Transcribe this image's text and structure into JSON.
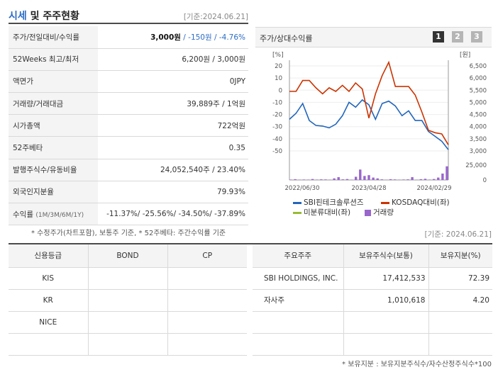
{
  "header": {
    "title_a": "시세",
    "title_b": " 및 주주현황",
    "date": "[기준:2024.06.21]"
  },
  "price_table": {
    "rows": [
      {
        "label": "주가/전일대비/수익률",
        "value_strong": "3,000원",
        "value_rest": " / -150원 / -4.76%"
      },
      {
        "label": "52Weeks 최고/최저",
        "value": "6,200원 / 3,000원"
      },
      {
        "label": "액면가",
        "value": "0JPY"
      },
      {
        "label": "거래량/거래대금",
        "value": "39,889주 / 1억원"
      },
      {
        "label": "시가총액",
        "value": "722억원"
      },
      {
        "label": "52주베타",
        "value": "0.35"
      },
      {
        "label": "발행주식수/유동비율",
        "value": "24,052,540주 / 23.40%"
      },
      {
        "label": "외국인지분율",
        "value": "79.93%"
      },
      {
        "label": "수익률",
        "label_small": "(1M/3M/6M/1Y)",
        "value": "-11.37%/ -25.56%/ -34.50%/ -37.89%"
      }
    ],
    "note": "* 수정주가(차트포함), 보통주 기준, * 52주베타: 주간수익률 기준"
  },
  "chart_panel": {
    "title": "주가/상대수익률",
    "buttons": [
      "1",
      "2",
      "3"
    ],
    "active_button": "1"
  },
  "chart_data": {
    "type": "line",
    "left_unit": "[%]",
    "right_unit": "[원]",
    "left_ticks": [
      20,
      10,
      0,
      -10,
      -20,
      -30,
      -40,
      -50
    ],
    "right_ticks": [
      "6,500",
      "6,000",
      "5,500",
      "5,000",
      "4,500",
      "4,000",
      "3,500",
      "3,000"
    ],
    "volume_ticks": [
      "25,000",
      "0"
    ],
    "x_labels": [
      "2022/06/30",
      "2023/04/28",
      "2024/02/29"
    ],
    "ylim_left": [
      -50,
      20
    ],
    "ylim_right": [
      3000,
      6500
    ],
    "series": [
      {
        "name": "SBI핀테크솔루션즈",
        "axis": "left",
        "color": "#2266bb",
        "values": [
          -24,
          -19,
          -11,
          -25,
          -29,
          -29.5,
          -31,
          -28,
          -21,
          -10,
          -14,
          -8,
          -12,
          -24,
          -11,
          -9,
          -13,
          -21,
          -17,
          -25,
          -25,
          -34,
          -38,
          -42,
          -49
        ]
      },
      {
        "name": "KOSDAQ대비(좌)",
        "axis": "left",
        "color": "#cc3300",
        "values": [
          -1,
          -1,
          8,
          8,
          2,
          -3,
          2,
          -1,
          4,
          -1,
          6,
          1,
          -23,
          -3,
          12,
          23,
          3,
          3,
          3,
          -4,
          -18,
          -33,
          -35,
          -36,
          -45
        ]
      },
      {
        "name": "미분류대비(좌)",
        "axis": "left",
        "color": "#99bb33",
        "values": []
      },
      {
        "name": "거래량",
        "axis": "volume",
        "color": "#9966cc",
        "type": "bar",
        "values": [
          500,
          1000,
          400,
          600,
          500,
          1200,
          500,
          800,
          700,
          400,
          2000,
          3500,
          800,
          1200,
          400,
          4000,
          13000,
          5000,
          6000,
          3000,
          2000,
          800,
          300,
          1000,
          700,
          400,
          600,
          800,
          3500,
          300,
          1000,
          1500,
          500,
          1200,
          3000,
          8000,
          17000
        ]
      }
    ]
  },
  "legend": {
    "sbi": "SBI핀테크솔루션즈",
    "kosdaq": "KOSDAQ대비(좌)",
    "unclassified": "미분류대비(좌)",
    "volume": "거래량"
  },
  "bottom": {
    "date": "[기준: 2024.06.21]",
    "credit_headers": [
      "신용등급",
      "BOND",
      "CP"
    ],
    "credit_rows": [
      [
        "KIS",
        "",
        ""
      ],
      [
        "KR",
        "",
        ""
      ],
      [
        "NICE",
        "",
        ""
      ],
      [
        "",
        "",
        ""
      ]
    ],
    "shareholder_headers": [
      "주요주주",
      "보유주식수(보통)",
      "보유지분(%)"
    ],
    "shareholder_rows": [
      [
        "SBI HOLDINGS, INC.",
        "17,412,533",
        "72.39"
      ],
      [
        "자사주",
        "1,010,618",
        "4.20"
      ],
      [
        "",
        "",
        ""
      ],
      [
        "",
        "",
        ""
      ]
    ],
    "note": "* 보유지분 : 보유지분주식수/자수산정주식수*100"
  },
  "colors": {
    "accent_blue": "#2b6cc4",
    "sbi_line": "#2266bb",
    "kosdaq_line": "#cc3300",
    "unclassified_line": "#99bb33",
    "volume_bar": "#9966cc"
  }
}
